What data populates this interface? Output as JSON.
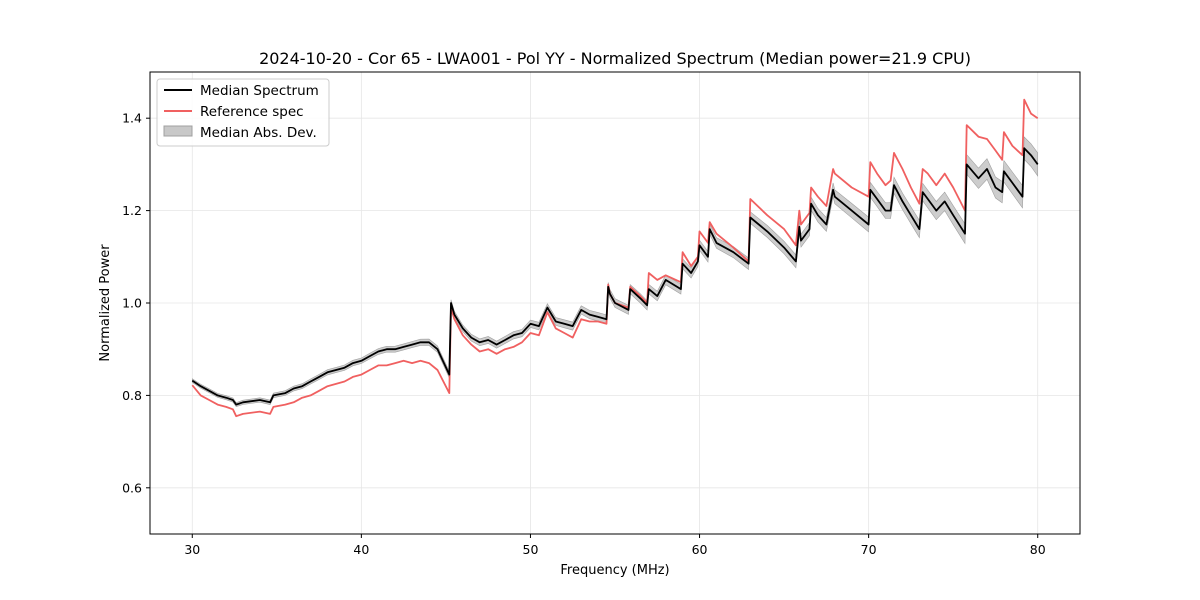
{
  "chart_data": {
    "type": "line",
    "title": "2024-10-20 - Cor 65 - LWA001 - Pol YY - Normalized Spectrum (Median power=21.9 CPU)",
    "xlabel": "Frequency (MHz)",
    "ylabel": "Normalized Power",
    "xlim": [
      27.5,
      82.5
    ],
    "ylim": [
      0.5,
      1.5
    ],
    "xticks": [
      30,
      40,
      50,
      60,
      70,
      80
    ],
    "yticks": [
      0.6,
      0.8,
      1.0,
      1.2,
      1.4
    ],
    "xtick_labels": [
      "30",
      "40",
      "50",
      "60",
      "70",
      "80"
    ],
    "ytick_labels": [
      "0.6",
      "0.8",
      "1.0",
      "1.2",
      "1.4"
    ],
    "grid": true,
    "legend_position": "top-left",
    "legend": [
      "Median Spectrum",
      "Reference spec",
      "Median Abs. Dev."
    ],
    "colors": {
      "median": "#000000",
      "reference": "#f06060",
      "mad_fill": "#c8c8c8",
      "mad_edge": "#a0a0a0"
    },
    "series": [
      {
        "name": "Median Spectrum",
        "x": [
          30,
          30.5,
          31,
          31.5,
          32,
          32.4,
          32.6,
          33,
          34,
          34.6,
          34.8,
          35.5,
          36,
          36.5,
          37,
          37.5,
          38,
          38.5,
          39,
          39.5,
          40,
          40.5,
          41,
          41.5,
          42,
          42.5,
          43,
          43.5,
          44,
          44.5,
          45.2,
          45.3,
          45.5,
          46,
          46.5,
          47,
          47.5,
          48,
          48.5,
          49,
          49.5,
          50,
          50.5,
          51,
          51.5,
          52,
          52.5,
          53,
          53.5,
          54,
          54.5,
          54.6,
          54.7,
          55,
          55.8,
          55.9,
          56.5,
          56.9,
          57,
          57.5,
          58,
          58.9,
          59,
          59.5,
          59.9,
          60,
          60.5,
          60.6,
          61,
          62,
          62.9,
          63,
          64,
          65,
          65.7,
          65.9,
          66,
          66.5,
          66.6,
          67,
          67.5,
          67.9,
          68,
          69,
          70,
          70.1,
          70.5,
          71,
          71.3,
          71.5,
          72,
          72.5,
          73,
          73.2,
          73.5,
          74,
          74.5,
          75,
          75.7,
          75.8,
          76.5,
          77,
          77.5,
          77.9,
          78,
          78.5,
          79.1,
          79.2,
          79.6,
          80
        ],
        "values": [
          0.832,
          0.82,
          0.81,
          0.8,
          0.795,
          0.79,
          0.78,
          0.785,
          0.79,
          0.785,
          0.8,
          0.805,
          0.815,
          0.82,
          0.83,
          0.84,
          0.85,
          0.855,
          0.86,
          0.87,
          0.875,
          0.885,
          0.895,
          0.9,
          0.9,
          0.905,
          0.91,
          0.915,
          0.915,
          0.9,
          0.845,
          1.0,
          0.975,
          0.945,
          0.925,
          0.915,
          0.92,
          0.91,
          0.92,
          0.93,
          0.935,
          0.955,
          0.95,
          0.99,
          0.96,
          0.955,
          0.95,
          0.985,
          0.975,
          0.97,
          0.965,
          1.035,
          1.02,
          1.0,
          0.985,
          1.03,
          1.01,
          0.995,
          1.03,
          1.015,
          1.05,
          1.03,
          1.085,
          1.065,
          1.09,
          1.125,
          1.1,
          1.16,
          1.13,
          1.11,
          1.085,
          1.185,
          1.155,
          1.12,
          1.09,
          1.165,
          1.135,
          1.16,
          1.215,
          1.19,
          1.17,
          1.245,
          1.23,
          1.2,
          1.17,
          1.245,
          1.225,
          1.2,
          1.2,
          1.255,
          1.22,
          1.19,
          1.16,
          1.24,
          1.225,
          1.2,
          1.22,
          1.19,
          1.15,
          1.3,
          1.27,
          1.29,
          1.25,
          1.24,
          1.285,
          1.26,
          1.23,
          1.335,
          1.32,
          1.3
        ]
      },
      {
        "name": "Reference spec",
        "x": [
          30,
          30.5,
          31,
          31.5,
          32,
          32.4,
          32.6,
          33,
          34,
          34.6,
          34.8,
          35.5,
          36,
          36.5,
          37,
          37.5,
          38,
          38.5,
          39,
          39.5,
          40,
          40.5,
          41,
          41.5,
          42,
          42.5,
          43,
          43.5,
          44,
          44.5,
          45.2,
          45.3,
          45.5,
          46,
          46.5,
          47,
          47.5,
          48,
          48.5,
          49,
          49.5,
          50,
          50.5,
          51,
          51.5,
          52,
          52.5,
          53,
          53.5,
          54,
          54.5,
          54.6,
          54.7,
          55,
          55.8,
          55.9,
          56.5,
          56.9,
          57,
          57.5,
          58,
          58.9,
          59,
          59.5,
          59.9,
          60,
          60.5,
          60.6,
          61,
          62,
          62.9,
          63,
          64,
          65,
          65.7,
          65.9,
          66,
          66.5,
          66.6,
          67,
          67.5,
          67.9,
          68,
          69,
          70,
          70.1,
          70.5,
          71,
          71.3,
          71.5,
          72,
          72.5,
          73,
          73.2,
          73.5,
          74,
          74.5,
          75,
          75.7,
          75.8,
          76.5,
          77,
          77.5,
          77.9,
          78,
          78.5,
          79.1,
          79.2,
          79.6,
          80
        ],
        "values": [
          0.822,
          0.8,
          0.79,
          0.78,
          0.775,
          0.77,
          0.755,
          0.76,
          0.765,
          0.76,
          0.775,
          0.78,
          0.785,
          0.795,
          0.8,
          0.81,
          0.82,
          0.825,
          0.83,
          0.84,
          0.845,
          0.855,
          0.865,
          0.865,
          0.87,
          0.875,
          0.87,
          0.875,
          0.87,
          0.855,
          0.805,
          0.99,
          0.965,
          0.93,
          0.91,
          0.895,
          0.9,
          0.89,
          0.9,
          0.905,
          0.915,
          0.935,
          0.93,
          0.98,
          0.945,
          0.935,
          0.925,
          0.965,
          0.96,
          0.96,
          0.955,
          1.04,
          1.02,
          1.0,
          0.99,
          1.035,
          1.015,
          1.0,
          1.065,
          1.05,
          1.06,
          1.045,
          1.11,
          1.08,
          1.1,
          1.155,
          1.13,
          1.175,
          1.15,
          1.12,
          1.09,
          1.225,
          1.19,
          1.16,
          1.125,
          1.2,
          1.17,
          1.195,
          1.25,
          1.23,
          1.21,
          1.29,
          1.28,
          1.25,
          1.23,
          1.305,
          1.28,
          1.255,
          1.265,
          1.325,
          1.29,
          1.25,
          1.215,
          1.29,
          1.28,
          1.255,
          1.28,
          1.25,
          1.2,
          1.385,
          1.36,
          1.355,
          1.33,
          1.31,
          1.37,
          1.34,
          1.32,
          1.44,
          1.41,
          1.4
        ]
      }
    ],
    "mad_band": {
      "name": "Median Abs. Dev.",
      "note": "Shaded band around Median Spectrum; half-width grows with frequency",
      "halfwidth_x": [
        30,
        40,
        50,
        60,
        70,
        80
      ],
      "halfwidth_values": [
        0.004,
        0.006,
        0.008,
        0.011,
        0.016,
        0.025
      ]
    }
  }
}
